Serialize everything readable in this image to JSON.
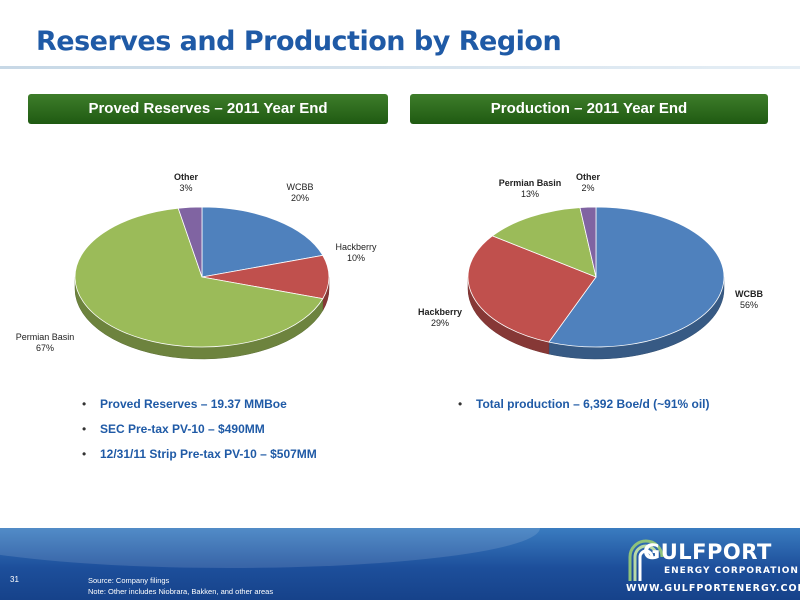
{
  "title": "Reserves and Production by Region",
  "colors": {
    "title": "#1f5aa6",
    "header_green": "#2e6b1e",
    "WCBB": "#4f81bd",
    "Hackberry": "#c0504d",
    "Permian Basin": "#9bbb59",
    "Other": "#8064a2",
    "footer_blue": "#1d4f9b"
  },
  "chart_data": [
    {
      "type": "pie",
      "title": "Proved Reserves – 2011 Year End",
      "slices": [
        {
          "label": "WCBB",
          "value_label": "20%",
          "value": 20
        },
        {
          "label": "Hackberry",
          "value_label": "10%",
          "value": 10
        },
        {
          "label": "Permian Basin",
          "value_label": "67%",
          "value": 67
        },
        {
          "label": "Other",
          "value_label": "3%",
          "value": 3
        }
      ]
    },
    {
      "type": "pie",
      "title": "Production – 2011 Year End",
      "slices": [
        {
          "label": "WCBB",
          "value_label": "56%",
          "value": 56
        },
        {
          "label": "Hackberry",
          "value_label": "29%",
          "value": 29
        },
        {
          "label": "Permian Basin",
          "value_label": "13%",
          "value": 13
        },
        {
          "label": "Other",
          "value_label": "2%",
          "value": 2
        }
      ]
    }
  ],
  "left_bullets": [
    "Proved Reserves – 19.37 MMBoe",
    "SEC Pre-tax PV-10 – $490MM",
    "12/31/11 Strip Pre-tax PV-10 – $507MM"
  ],
  "right_bullets": [
    "Total production – 6,392 Boe/d (~91% oil)"
  ],
  "footer": {
    "page_number": "31",
    "source": "Source:  Company filings",
    "note": "Note:  Other includes  Niobrara, Bakken, and other areas"
  },
  "logo": {
    "name": "GULFPORT",
    "subtitle": "ENERGY CORPORATION",
    "url": "WWW.GULFPORTENERGY.COM"
  }
}
